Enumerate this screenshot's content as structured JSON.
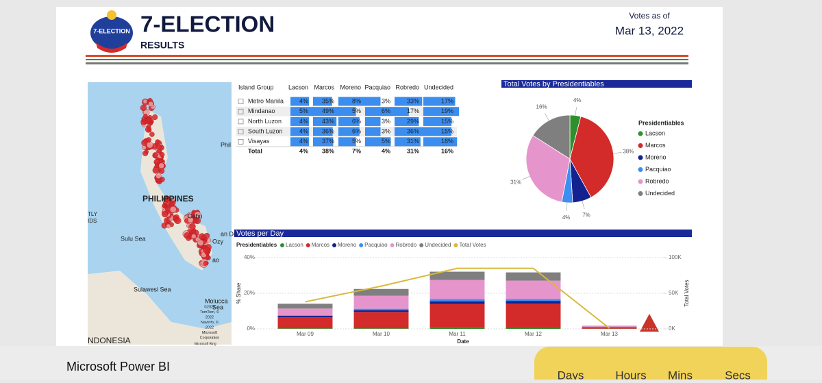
{
  "header": {
    "logo_text": "7-ELECTION",
    "title": "7-ELECTION",
    "subtitle": "RESULTS",
    "votes_as_of": "Votes as of",
    "date": "Mar 13, 2022"
  },
  "map": {
    "labels": [
      "Phil",
      "PHILIPPINES",
      "TLY",
      "IDS",
      "Sulu Sea",
      "Sulawesi Sea",
      "Molucca",
      "Sea",
      "NDONESIA",
      "Cebu",
      "an De",
      "Ozy",
      "ao"
    ],
    "attribution": [
      "©2022",
      "TomTom, ©",
      "2022",
      "NavInfo, ©",
      "2022",
      "Microsoft",
      "Corporation"
    ],
    "bing": "Microsoft Bing"
  },
  "table": {
    "columns": [
      "Island Group",
      "Lacson",
      "Marcos",
      "Moreno",
      "Pacquiao",
      "Robredo",
      "Undecided"
    ],
    "rows": [
      [
        "Metro Manila",
        "4%",
        "35%",
        "8%",
        "3%",
        "33%",
        "17%"
      ],
      [
        "Mindanao",
        "5%",
        "49%",
        "5%",
        "6%",
        "17%",
        "19%"
      ],
      [
        "North Luzon",
        "4%",
        "43%",
        "6%",
        "3%",
        "29%",
        "15%"
      ],
      [
        "South Luzon",
        "4%",
        "36%",
        "6%",
        "3%",
        "36%",
        "15%"
      ],
      [
        "Visayas",
        "4%",
        "37%",
        "5%",
        "5%",
        "31%",
        "18%"
      ]
    ],
    "total": [
      "Total",
      "4%",
      "38%",
      "7%",
      "4%",
      "31%",
      "16%"
    ]
  },
  "chart_data": [
    {
      "type": "pie",
      "title": "Total Votes by Presidentiables",
      "legend_title": "Presidentiables",
      "legend": "right",
      "categories": [
        "Lacson",
        "Marcos",
        "Moreno",
        "Pacquiao",
        "Robredo",
        "Undecided"
      ],
      "values": [
        4,
        38,
        7,
        4,
        31,
        16
      ],
      "value_labels": [
        "4%",
        "38%",
        "7%",
        "4%",
        "31%",
        "16%"
      ],
      "colors": [
        "#2f8f2f",
        "#d32a2a",
        "#13228f",
        "#3d8ef0",
        "#e595cc",
        "#7f7f7f"
      ]
    },
    {
      "type": "bar",
      "stacked": true,
      "title": "Votes per Day",
      "legend_title": "Presidentiables",
      "x_label": "Date",
      "y_label": "% Share",
      "y2_label": "Total Votes",
      "categories": [
        "Mar 09",
        "Mar 10",
        "Mar 11",
        "Mar 12",
        "Mar 13"
      ],
      "ylim": [
        0,
        40
      ],
      "yticks": [
        {
          "value": 0,
          "label": "0%"
        },
        {
          "value": 20,
          "label": "20%"
        },
        {
          "value": 40,
          "label": "40%"
        }
      ],
      "y2lim": [
        0,
        100
      ],
      "y2ticks": [
        {
          "value": 0,
          "label": "0K"
        },
        {
          "value": 50,
          "label": "50K"
        },
        {
          "value": 100,
          "label": "100K"
        }
      ],
      "series": [
        {
          "name": "Lacson",
          "color": "#2f8f2f",
          "values": [
            0.3,
            0.3,
            0.5,
            0.4,
            0.1
          ]
        },
        {
          "name": "Marcos",
          "color": "#d32a2a",
          "values": [
            6.2,
            9.2,
            13.5,
            13.8,
            0.8
          ]
        },
        {
          "name": "Moreno",
          "color": "#13228f",
          "values": [
            0.8,
            1,
            1.5,
            1.5,
            0.1
          ]
        },
        {
          "name": "Pacquiao",
          "color": "#3d8ef0",
          "values": [
            0.3,
            0.8,
            1.2,
            1,
            0.1
          ]
        },
        {
          "name": "Robredo",
          "color": "#e595cc",
          "values": [
            3.8,
            7.3,
            10.8,
            10.4,
            0.4
          ]
        },
        {
          "name": "Undecided",
          "color": "#7f7f7f",
          "values": [
            2.7,
            3.8,
            4.6,
            4.6,
            0.2
          ]
        },
        {
          "name": "Total Votes",
          "color": "#d9b93a",
          "type": "line",
          "axis": "y2",
          "values": [
            38,
            60,
            85,
            85,
            1
          ]
        }
      ]
    }
  ],
  "footer": {
    "app_name": "Microsoft Power BI",
    "countdown": [
      "Days",
      "Hours",
      "Mins",
      "Secs"
    ]
  }
}
